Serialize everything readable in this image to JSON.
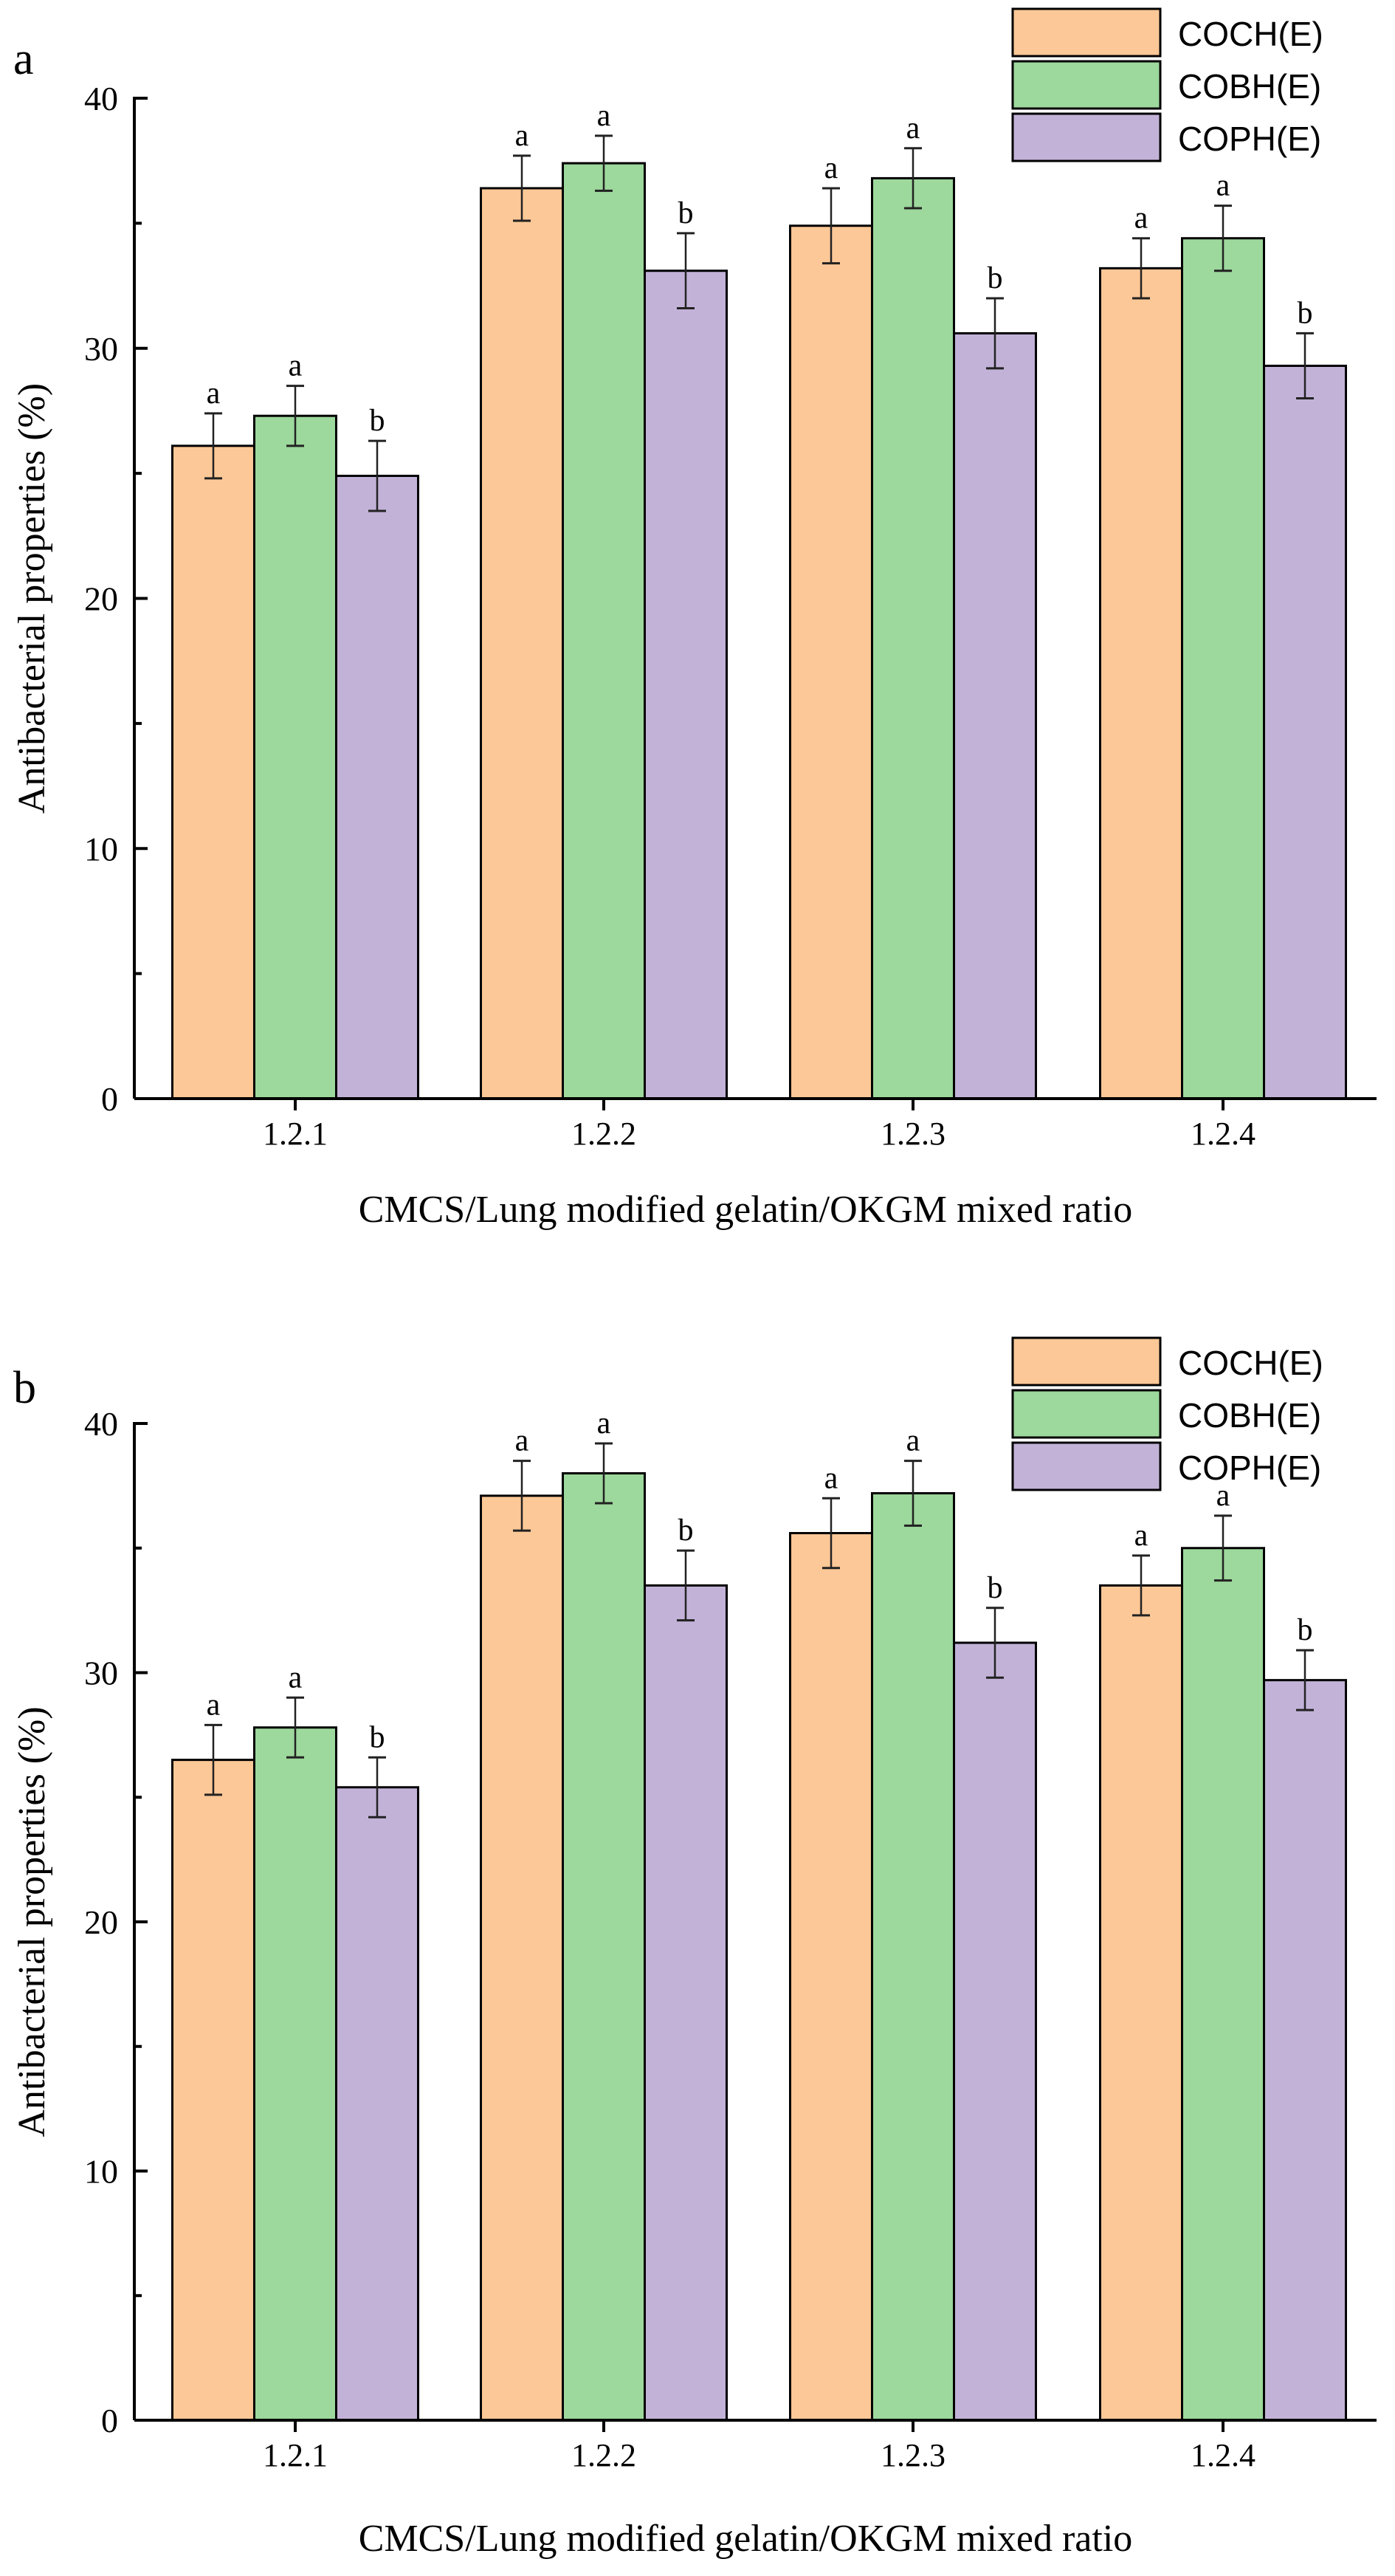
{
  "chart_data": [
    {
      "type": "bar",
      "panel_label": "a",
      "xlabel": "CMCS/Lung modified gelatin/OKGM mixed ratio",
      "ylabel": "Antibacterial properties (%)",
      "ylim": [
        0,
        40
      ],
      "yticks": [
        0,
        10,
        20,
        30,
        40
      ],
      "categories": [
        "1.2.1",
        "1.2.2",
        "1.2.3",
        "1.2.4"
      ],
      "legend_position": "top-right",
      "grid": false,
      "series": [
        {
          "name": "COCH(E)",
          "color": "#FDC897",
          "values": [
            26.1,
            36.4,
            34.9,
            33.2
          ],
          "errors": [
            1.3,
            1.3,
            1.5,
            1.2
          ],
          "letters": [
            "a",
            "a",
            "a",
            "a"
          ]
        },
        {
          "name": "COBH(E)",
          "color": "#9DD89C",
          "values": [
            27.3,
            37.4,
            36.8,
            34.4
          ],
          "errors": [
            1.2,
            1.1,
            1.2,
            1.3
          ],
          "letters": [
            "a",
            "a",
            "a",
            "a"
          ]
        },
        {
          "name": "COPH(E)",
          "color": "#C3B2D8",
          "values": [
            24.9,
            33.1,
            30.6,
            29.3
          ],
          "errors": [
            1.4,
            1.5,
            1.4,
            1.3
          ],
          "letters": [
            "b",
            "b",
            "b",
            "b"
          ]
        }
      ]
    },
    {
      "type": "bar",
      "panel_label": "b",
      "xlabel": "CMCS/Lung modified gelatin/OKGM mixed ratio",
      "ylabel": "Antibacterial properties (%)",
      "ylim": [
        0,
        40
      ],
      "yticks": [
        0,
        10,
        20,
        30,
        40
      ],
      "categories": [
        "1.2.1",
        "1.2.2",
        "1.2.3",
        "1.2.4"
      ],
      "legend_position": "top-right",
      "grid": false,
      "series": [
        {
          "name": "COCH(E)",
          "color": "#FDC897",
          "values": [
            26.5,
            37.1,
            35.6,
            33.5
          ],
          "errors": [
            1.4,
            1.4,
            1.4,
            1.2
          ],
          "letters": [
            "a",
            "a",
            "a",
            "a"
          ]
        },
        {
          "name": "COBH(E)",
          "color": "#9DD89C",
          "values": [
            27.8,
            38.0,
            37.2,
            35.0
          ],
          "errors": [
            1.2,
            1.2,
            1.3,
            1.3
          ],
          "letters": [
            "a",
            "a",
            "a",
            "a"
          ]
        },
        {
          "name": "COPH(E)",
          "color": "#C3B2D8",
          "values": [
            25.4,
            33.5,
            31.2,
            29.7
          ],
          "errors": [
            1.2,
            1.4,
            1.4,
            1.2
          ],
          "letters": [
            "b",
            "b",
            "b",
            "b"
          ]
        }
      ]
    }
  ]
}
